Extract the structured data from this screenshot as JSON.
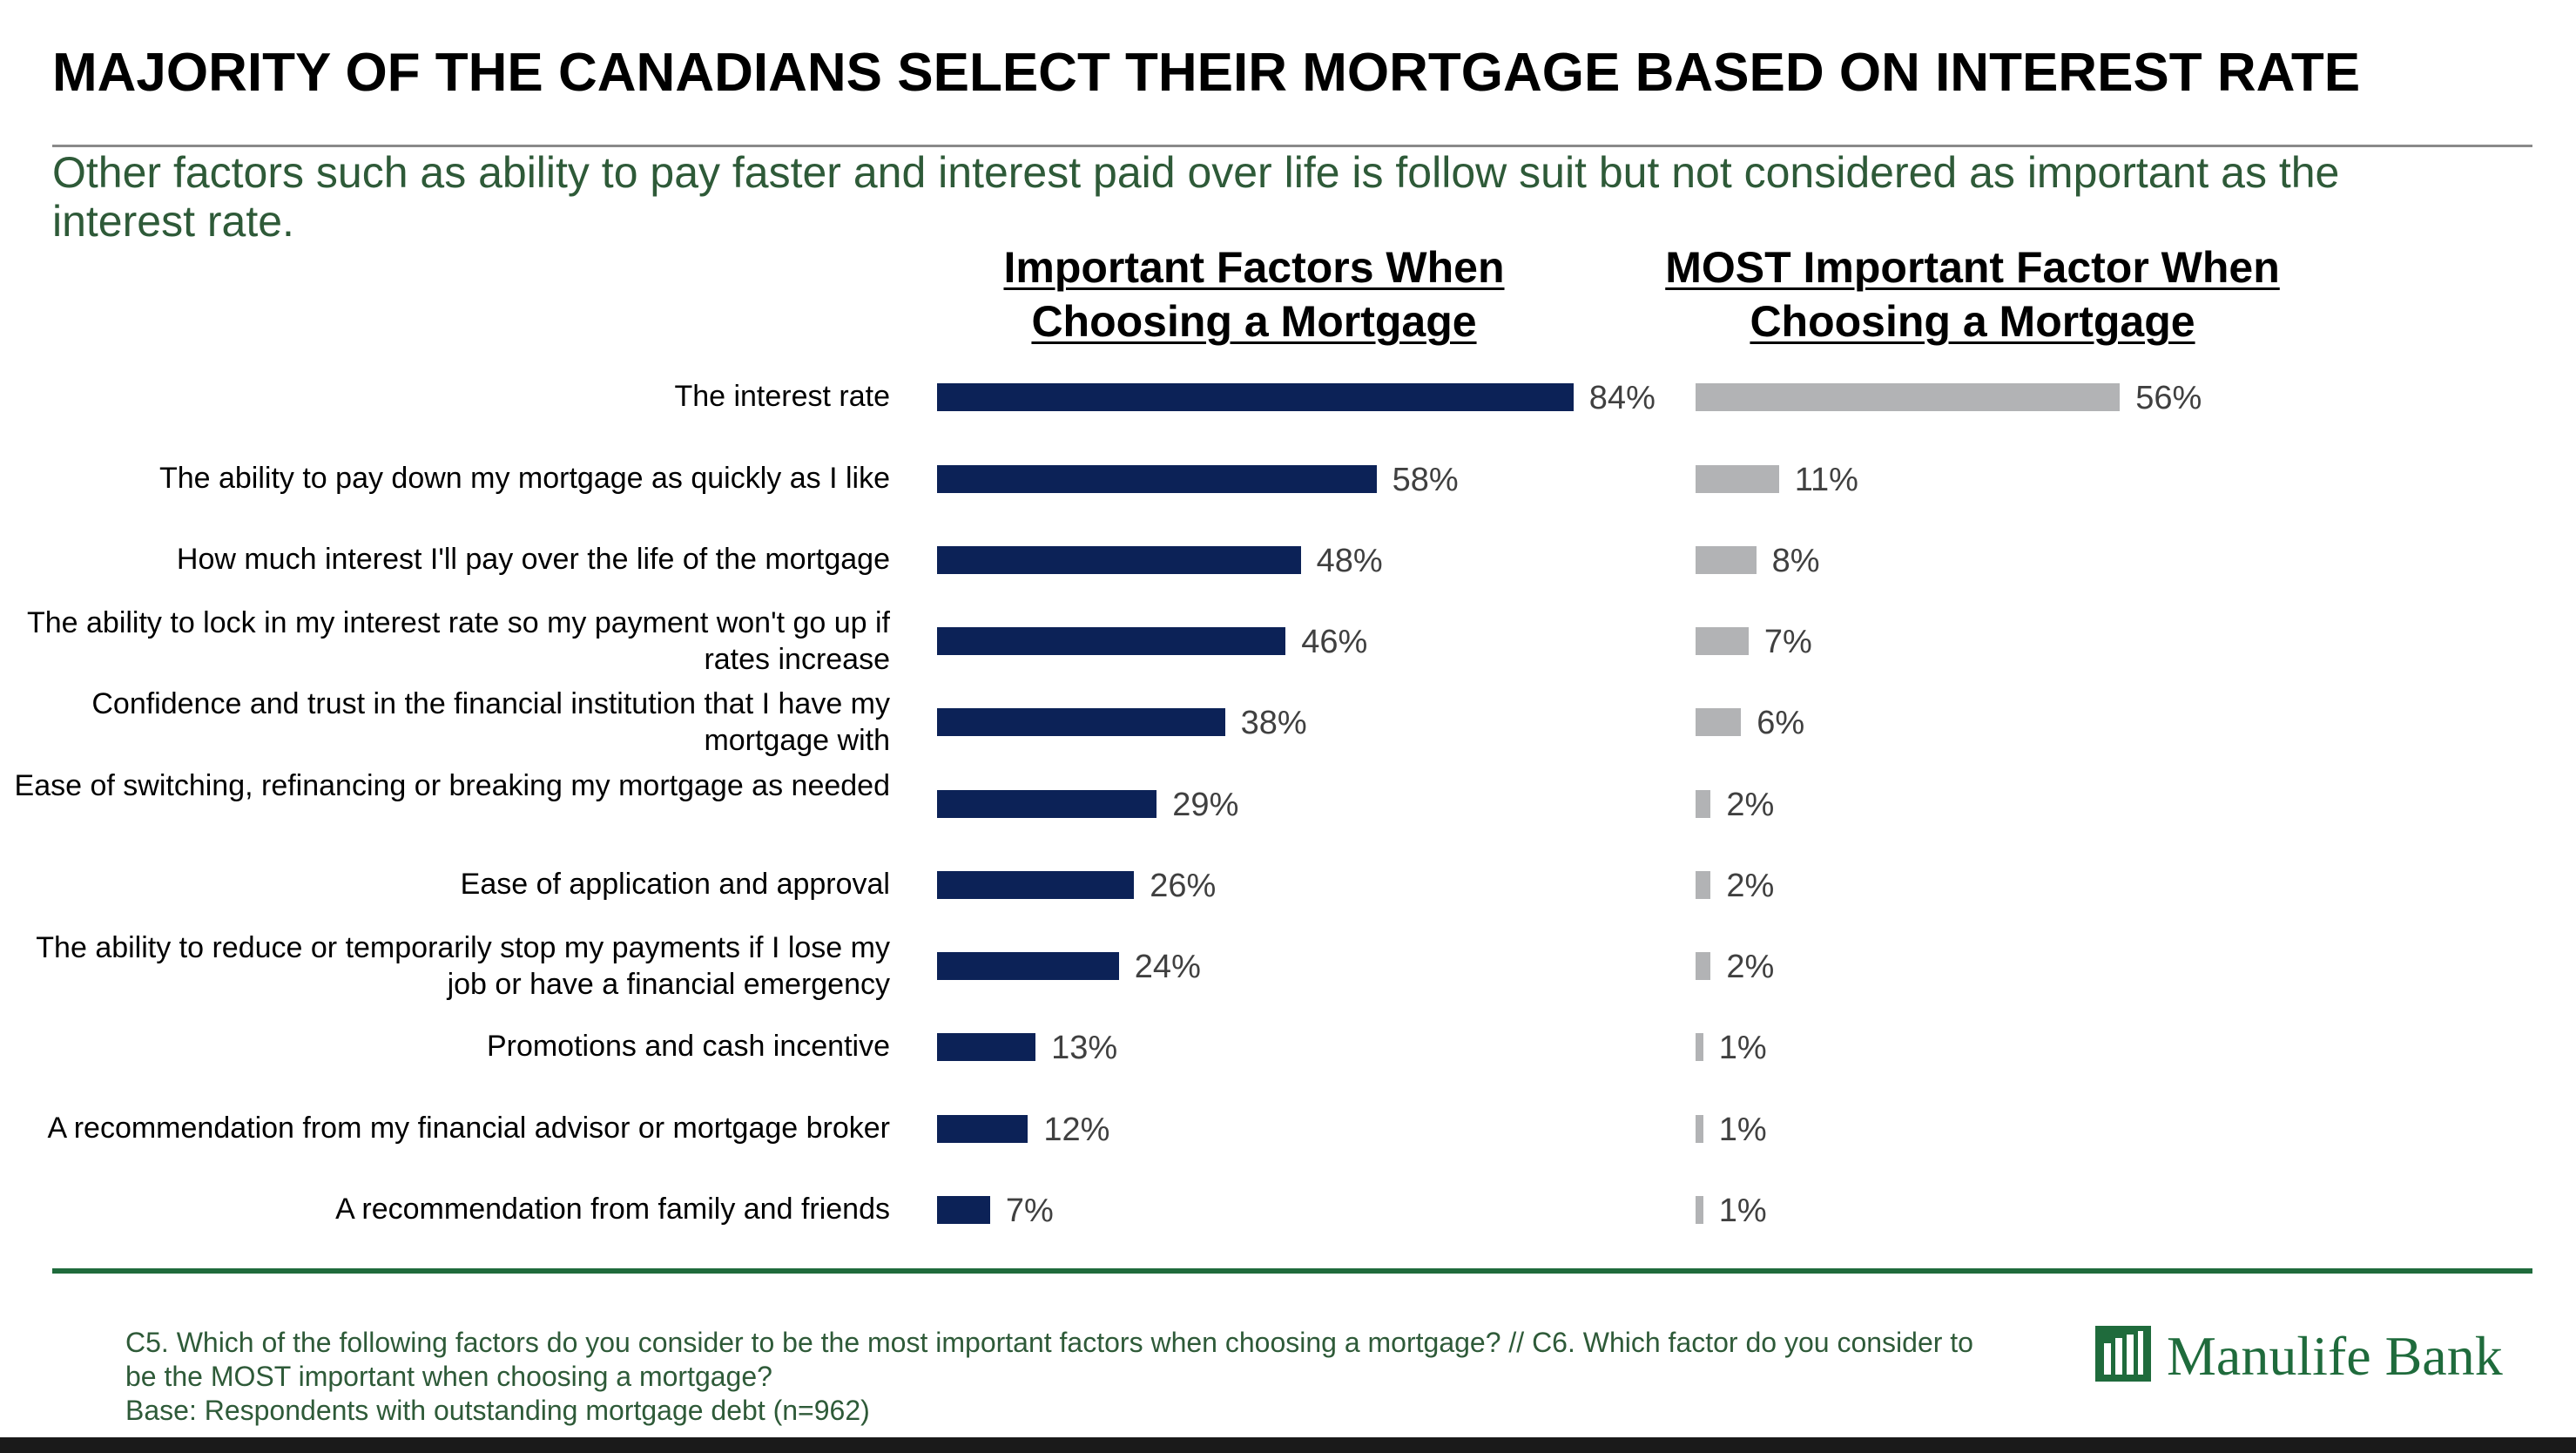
{
  "header": {
    "title": "MAJORITY OF THE CANADIANS SELECT THEIR MORTGAGE BASED ON INTEREST RATE",
    "subtitle": "Other factors such as ability to pay faster and interest paid over life is follow suit but not considered as important as the interest rate."
  },
  "colors": {
    "primary_bar": "#0c2257",
    "secondary_bar": "#b2b3b5",
    "brand_green": "#1f6b3c"
  },
  "chart_data": {
    "type": "bar",
    "orientation": "horizontal",
    "value_format": "%",
    "categories": [
      "The interest rate",
      "The ability to pay down my mortgage as quickly as I like",
      "How much interest I'll pay over the life of the mortgage",
      "The ability to lock in my interest rate so my payment won't go up if rates increase",
      "Confidence and trust in the financial institution that I have my mortgage with",
      "Ease of switching, refinancing or breaking my mortgage as needed",
      "Ease of application and approval",
      "The ability to reduce or temporarily stop my payments if I lose my job or have a financial emergency",
      "Promotions and cash incentive",
      "A recommendation from my financial advisor or mortgage broker",
      "A recommendation from family and friends"
    ],
    "series": [
      {
        "name": "Important Factors When Choosing a Mortgage",
        "values": [
          84,
          58,
          48,
          46,
          38,
          29,
          26,
          24,
          13,
          12,
          7
        ],
        "labels": [
          "84%",
          "58%",
          "48%",
          "46%",
          "38%",
          "29%",
          "26%",
          "24%",
          "13%",
          "12%",
          "7%"
        ]
      },
      {
        "name": "MOST Important Factor When Choosing a Mortgage",
        "values": [
          56,
          11,
          8,
          7,
          6,
          2,
          2,
          2,
          1,
          1,
          1
        ],
        "labels": [
          "56%",
          "11%",
          "8%",
          "7%",
          "6%",
          "2%",
          "2%",
          "2%",
          "1%",
          "1%",
          "1%"
        ]
      }
    ],
    "legend": "none",
    "grid": false
  },
  "footer": {
    "question": "C5.  Which of the following factors do you consider to be the most important factors when choosing a mortgage? // C6.  Which factor do you consider to be the MOST important when choosing a mortgage?",
    "base": "Base: Respondents with outstanding mortgage debt (n=962)",
    "logo_text": "Manulife Bank",
    "logo_icon": "manulife-m-icon"
  }
}
